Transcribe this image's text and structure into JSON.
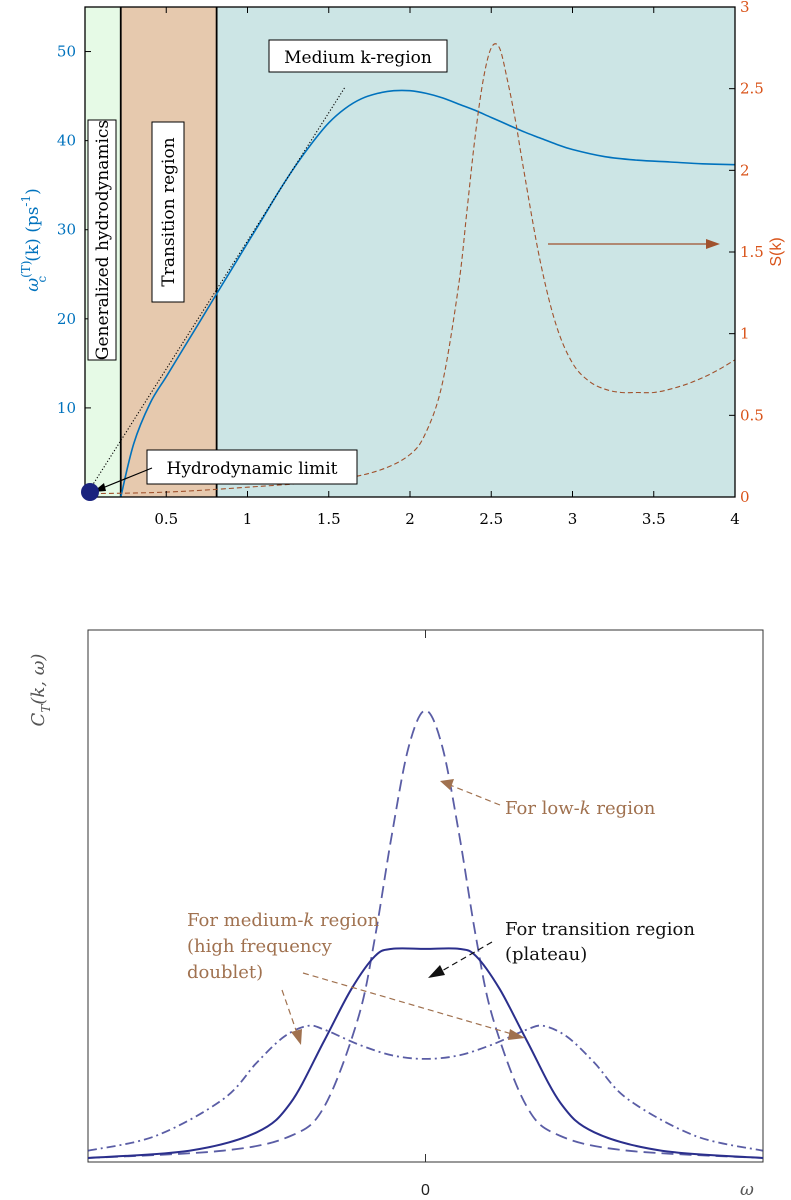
{
  "chart_data": [
    {
      "type": "line",
      "xlabel": "",
      "ylabel_left": {
        "prefix": "ω",
        "sup1": "(T)",
        "sub": "c",
        "mid": "(k) (ps",
        "sup2": "-1",
        "suffix": ")"
      },
      "ylabel_right": "S(k)",
      "xlim": [
        0,
        4
      ],
      "ylim_left": [
        0,
        55
      ],
      "ylim_right": [
        0,
        3
      ],
      "xticks": [
        0.5,
        1,
        1.5,
        2,
        2.5,
        3,
        3.5,
        4
      ],
      "xtick_labels": [
        "0.5",
        "1",
        "1.5",
        "2",
        "2.5",
        "3",
        "3.5",
        "4"
      ],
      "yticks_left": [
        10,
        20,
        30,
        40,
        50
      ],
      "ytick_labels_left": [
        "10",
        "20",
        "30",
        "40",
        "50"
      ],
      "yticks_right": [
        0,
        0.5,
        1,
        1.5,
        2,
        2.5,
        3
      ],
      "ytick_labels_right": [
        "0",
        "0.5",
        "1",
        "1.5",
        "2",
        "2.5",
        "3"
      ],
      "colors": {
        "left_axis": "#0072bd",
        "right_axis": "#d95319",
        "dashed": "#a0522d",
        "arrow": "#a0522d",
        "hydro_dot": "#1a237e"
      },
      "regions": [
        {
          "name": "Generalized hydrodynamics",
          "x": [
            0,
            0.22
          ],
          "color": "#e6fae6"
        },
        {
          "name": "Transition region",
          "x": [
            0.22,
            0.81
          ],
          "color": "#e6c9ae"
        },
        {
          "name": "Medium k-region",
          "x": [
            0.81,
            4
          ],
          "color": "#cce5e5"
        }
      ],
      "labels": {
        "generalized": "Generalized hydrodynamics",
        "transition": "Transition region",
        "medium": "Medium k-region",
        "hydro_limit": "Hydrodynamic limit"
      },
      "series": [
        {
          "axis": "left",
          "style": "solid",
          "color": "#0072bd",
          "x": [
            0.22,
            0.3,
            0.4,
            0.5,
            0.6,
            0.7,
            0.8,
            0.9,
            1.0,
            1.1,
            1.2,
            1.3,
            1.4,
            1.5,
            1.6,
            1.7,
            1.8,
            1.9,
            2.0,
            2.1,
            2.2,
            2.3,
            2.4,
            2.5,
            2.6,
            2.7,
            2.8,
            2.9,
            3.0,
            3.2,
            3.4,
            3.6,
            3.8,
            4.0
          ],
          "y": [
            0,
            6,
            10.5,
            13.5,
            16.5,
            19.5,
            22.5,
            25.5,
            28.5,
            31.5,
            34.5,
            37.3,
            39.8,
            42,
            43.6,
            44.7,
            45.3,
            45.6,
            45.6,
            45.3,
            44.8,
            44.1,
            43.4,
            42.6,
            41.8,
            41.0,
            40.3,
            39.6,
            39.0,
            38.2,
            37.8,
            37.6,
            37.4,
            37.3
          ]
        },
        {
          "axis": "left",
          "style": "dotted",
          "color": "#000000",
          "x": [
            0,
            1.6
          ],
          "y": [
            0,
            46
          ]
        },
        {
          "axis": "right",
          "style": "dashed",
          "color": "#a0522d",
          "x": [
            0.0,
            0.5,
            1.0,
            1.5,
            1.8,
            2.0,
            2.1,
            2.2,
            2.3,
            2.35,
            2.4,
            2.45,
            2.5,
            2.55,
            2.6,
            2.65,
            2.7,
            2.8,
            2.9,
            3.0,
            3.1,
            3.2,
            3.3,
            3.4,
            3.5,
            3.6,
            3.7,
            3.8,
            3.9,
            4.0
          ],
          "y": [
            0.02,
            0.03,
            0.06,
            0.1,
            0.16,
            0.26,
            0.4,
            0.7,
            1.3,
            1.75,
            2.2,
            2.55,
            2.75,
            2.75,
            2.55,
            2.3,
            2.0,
            1.45,
            1.05,
            0.82,
            0.71,
            0.66,
            0.64,
            0.64,
            0.64,
            0.66,
            0.69,
            0.73,
            0.78,
            0.84
          ]
        }
      ]
    },
    {
      "type": "line",
      "xlabel": "ω",
      "ylabel": "C_T(k, ω)",
      "ylabel_parts": {
        "main": "C",
        "sub": "T",
        "args": "(k, ω)"
      },
      "xlim": [
        -1,
        1
      ],
      "ylim": [
        0,
        1.45
      ],
      "xticks": [
        0
      ],
      "xtick_labels": [
        "0"
      ],
      "colors": {
        "curves": "#2b2f8c",
        "annot_brown": "#a0714f",
        "annot_black": "#111111"
      },
      "annotations": {
        "low_k": {
          "pre": "For low-",
          "k": "k",
          "post": " region"
        },
        "medium_k": {
          "line1_pre": "For medium-",
          "k": "k",
          "line1_post": " region",
          "line2": "(high frequency",
          "line3": "doublet)"
        },
        "transition": {
          "line1": "For transition region",
          "line2": "(plateau)"
        }
      },
      "series": [
        {
          "style": "dashed",
          "label": "low-k",
          "x": [
            -1.0,
            -0.6,
            -0.4,
            -0.3,
            -0.2,
            -0.15,
            -0.1,
            -0.05,
            0.0,
            0.05,
            0.1,
            0.15,
            0.2,
            0.3,
            0.4,
            0.6,
            1.0
          ],
          "y": [
            0.0,
            0.02,
            0.06,
            0.14,
            0.38,
            0.6,
            0.88,
            1.12,
            1.22,
            1.12,
            0.88,
            0.6,
            0.38,
            0.14,
            0.06,
            0.02,
            0.0
          ]
        },
        {
          "style": "solid",
          "label": "transition",
          "x": [
            -1.0,
            -0.7,
            -0.5,
            -0.4,
            -0.3,
            -0.22,
            -0.15,
            -0.1,
            0.0,
            0.1,
            0.15,
            0.22,
            0.3,
            0.4,
            0.5,
            0.7,
            1.0
          ],
          "y": [
            0.0,
            0.02,
            0.07,
            0.15,
            0.32,
            0.46,
            0.55,
            0.57,
            0.57,
            0.57,
            0.55,
            0.46,
            0.32,
            0.15,
            0.07,
            0.02,
            0.0
          ]
        },
        {
          "style": "dashdot",
          "label": "medium-k",
          "x": [
            -1.0,
            -0.8,
            -0.6,
            -0.5,
            -0.42,
            -0.35,
            -0.3,
            -0.2,
            -0.1,
            0.0,
            0.1,
            0.2,
            0.3,
            0.35,
            0.42,
            0.5,
            0.6,
            0.8,
            1.0
          ],
          "y": [
            0.02,
            0.06,
            0.16,
            0.26,
            0.33,
            0.36,
            0.35,
            0.31,
            0.28,
            0.27,
            0.28,
            0.31,
            0.35,
            0.36,
            0.33,
            0.26,
            0.16,
            0.06,
            0.02
          ]
        }
      ]
    }
  ]
}
